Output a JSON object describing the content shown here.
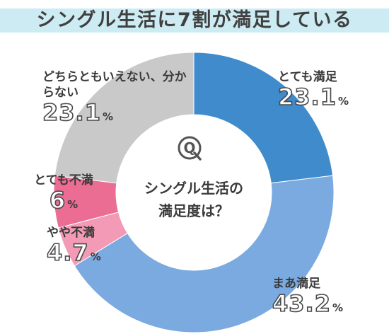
{
  "title": "シングル生活に7割が満足している",
  "center": {
    "badge": "Q",
    "question_line1": "シングル生活の",
    "question_line2": "満足度は？"
  },
  "chart_data": {
    "type": "pie",
    "style": "donut",
    "unit": "%",
    "slices": [
      {
        "label": "とても満足",
        "value": 23.1,
        "value_text": "23.1",
        "color": "#3f8bcc"
      },
      {
        "label": "まあ満足",
        "value": 43.2,
        "value_text": "43.2",
        "color": "#7aaadf"
      },
      {
        "label": "やや不満",
        "value": 4.7,
        "value_text": "4.7",
        "color": "#f29ab6"
      },
      {
        "label": "とても不満",
        "value": 6,
        "value_text": "6",
        "color": "#ec6d93"
      },
      {
        "label": "どちらともいえない、分からない",
        "value": 23.1,
        "value_text": "23.1",
        "color": "#c9c9c9"
      }
    ]
  }
}
